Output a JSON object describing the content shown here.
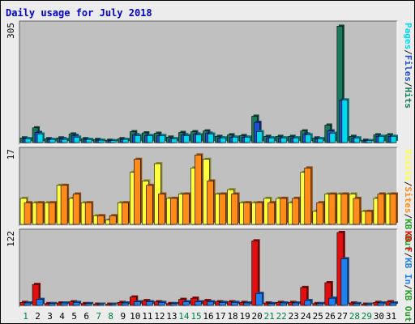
{
  "chart_data": {
    "title": "Daily usage for July 2018",
    "type": "bar",
    "days": [
      "1",
      "2",
      "3",
      "4",
      "5",
      "6",
      "7",
      "8",
      "9",
      "10",
      "11",
      "12",
      "13",
      "14",
      "15",
      "16",
      "17",
      "18",
      "19",
      "20",
      "21",
      "22",
      "23",
      "24",
      "25",
      "26",
      "27",
      "28",
      "29",
      "30",
      "31"
    ],
    "weekend_days": [
      "1",
      "7",
      "8",
      "14",
      "15",
      "21",
      "22",
      "28",
      "29"
    ],
    "panels": [
      {
        "max_label": "305",
        "ymax": 305,
        "series": [
          {
            "name": "Hits",
            "color": "#1a7a5e",
            "values": [
              12,
              38,
              10,
              12,
              22,
              10,
              8,
              6,
              10,
              28,
              25,
              24,
              14,
              26,
              28,
              30,
              16,
              20,
              18,
              68,
              16,
              16,
              16,
              30,
              12,
              45,
              300,
              16,
              6,
              20,
              20
            ]
          },
          {
            "name": "Files",
            "color": "#2050d0",
            "values": [
              10,
              26,
              8,
              10,
              18,
              8,
              6,
              5,
              8,
              20,
              18,
              18,
              10,
              20,
              22,
              24,
              12,
              14,
              14,
              52,
              12,
              12,
              12,
              22,
              10,
              30,
              110,
              12,
              5,
              16,
              16
            ]
          },
          {
            "name": "Pages",
            "color": "#00d8f0",
            "values": [
              10,
              22,
              8,
              8,
              14,
              8,
              6,
              5,
              8,
              18,
              18,
              18,
              10,
              18,
              20,
              22,
              12,
              14,
              14,
              28,
              12,
              12,
              12,
              20,
              10,
              24,
              110,
              12,
              5,
              16,
              16
            ]
          }
        ]
      },
      {
        "max_label": "17",
        "ymax": 17,
        "series": [
          {
            "name": "Visits",
            "color": "#ffff40",
            "values": [
              6,
              5,
              5,
              9,
              6,
              5,
              2,
              1,
              5,
              12,
              10,
              14,
              6,
              7,
              13,
              15,
              7,
              8,
              5,
              5,
              6,
              6,
              5,
              12,
              3,
              7,
              7,
              7,
              3,
              6,
              7
            ]
          },
          {
            "name": "Sites",
            "color": "#ff8c1a",
            "values": [
              5,
              5,
              5,
              9,
              7,
              5,
              2,
              2,
              5,
              15,
              9,
              7,
              6,
              7,
              16,
              10,
              7,
              7,
              5,
              5,
              5,
              6,
              6,
              13,
              5,
              7,
              7,
              6,
              3,
              7,
              7
            ]
          }
        ]
      },
      {
        "max_label": "122",
        "ymax": 122,
        "series": [
          {
            "name": "KB F",
            "color": "#e01010",
            "values": [
              5,
              35,
              3,
              4,
              6,
              3,
              2,
              2,
              5,
              14,
              8,
              6,
              3,
              10,
              12,
              8,
              6,
              6,
              5,
              108,
              4,
              5,
              5,
              30,
              3,
              38,
              122,
              4,
              2,
              5,
              6
            ]
          },
          {
            "name": "KB In",
            "color": "#2080f0",
            "values": [
              4,
              10,
              3,
              4,
              5,
              3,
              2,
              2,
              4,
              6,
              6,
              5,
              3,
              6,
              6,
              6,
              5,
              5,
              4,
              20,
              3,
              4,
              4,
              8,
              3,
              12,
              78,
              3,
              2,
              4,
              4
            ]
          }
        ]
      }
    ],
    "side_labels": [
      {
        "segments": [
          [
            "Pages",
            "#00d8f0"
          ],
          [
            "/",
            "#202020"
          ],
          [
            "Files",
            "#2050d0"
          ],
          [
            "/",
            "#202020"
          ],
          [
            "Hits",
            "#1a7a5e"
          ]
        ]
      },
      {
        "segments": [
          [
            "Visits",
            "#ffff40"
          ],
          [
            "/",
            "#202020"
          ],
          [
            "Sites",
            "#ff8c1a"
          ],
          [
            "/",
            "#202020"
          ],
          [
            "KB Out",
            "#2aa02a"
          ]
        ]
      },
      {
        "segments": [
          [
            "KB F",
            "#e01010"
          ],
          [
            "/",
            "#202020"
          ],
          [
            "KB In",
            "#2080f0"
          ],
          [
            "/",
            "#202020"
          ],
          [
            "KB Out",
            "#2aa02a"
          ]
        ]
      }
    ]
  }
}
